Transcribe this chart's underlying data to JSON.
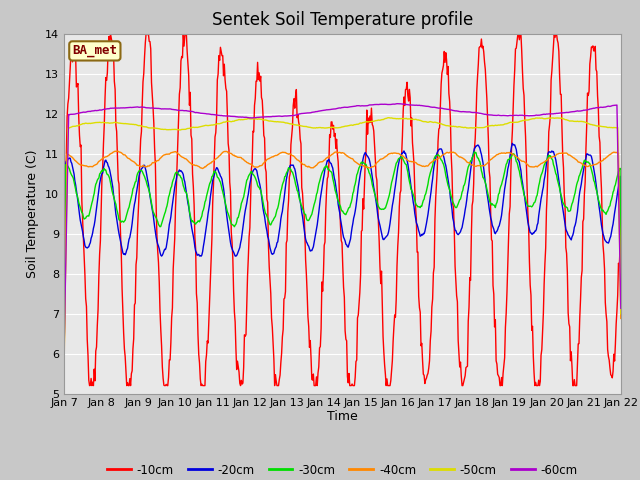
{
  "title": "Sentek Soil Temperature profile",
  "xlabel": "Time",
  "ylabel": "Soil Temperature (C)",
  "ylim": [
    5.0,
    14.0
  ],
  "yticks": [
    5.0,
    6.0,
    7.0,
    8.0,
    9.0,
    10.0,
    11.0,
    12.0,
    13.0,
    14.0
  ],
  "n_days": 15,
  "x_labels": [
    "Jan 7",
    "Jan 8",
    "Jan 9",
    "Jan 10",
    "Jan 11",
    "Jan 12",
    "Jan 13",
    "Jan 14",
    "Jan 15",
    "Jan 16",
    "Jan 17",
    "Jan 18",
    "Jan 19",
    "Jan 20",
    "Jan 21",
    "Jan 22"
  ],
  "fig_bg": "#c8c8c8",
  "plot_bg": "#e8e8e8",
  "grid_color": "#ffffff",
  "legend_label": "BA_met",
  "legend_bg": "#ffffcc",
  "legend_border": "#8b6914",
  "legend_text_color": "#800000",
  "series_colors": {
    "-10cm": "#ff0000",
    "-20cm": "#0000dd",
    "-30cm": "#00dd00",
    "-40cm": "#ff8800",
    "-50cm": "#dddd00",
    "-60cm": "#aa00cc"
  },
  "depths": [
    "-10cm",
    "-20cm",
    "-30cm",
    "-40cm",
    "-50cm",
    "-60cm"
  ],
  "lw": 1.0,
  "title_fontsize": 12,
  "axis_label_fontsize": 9,
  "tick_fontsize": 8
}
